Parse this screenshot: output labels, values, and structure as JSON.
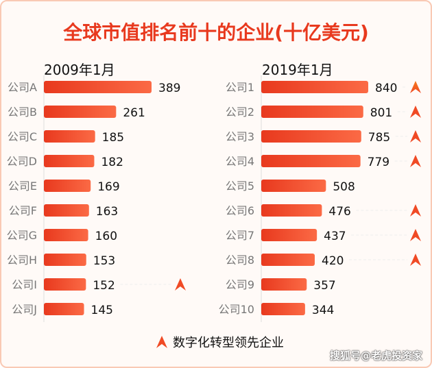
{
  "title": "全球市值排名前十的企业(十亿美元)",
  "legend": {
    "label": "数字化转型领先企业",
    "icon": "arrow-up-icon"
  },
  "watermark": "搜狐号@老虎投资家",
  "colors": {
    "title": "#e8391e",
    "bar_start": "#e8391e",
    "bar_end": "#fb6a45",
    "marker": "#f04a25",
    "marker_top": "#f57a1c"
  },
  "chart_data": [
    {
      "type": "bar",
      "orientation": "horizontal",
      "title": "2009年1月",
      "categories": [
        "公司A",
        "公司B",
        "公司C",
        "公司D",
        "公司E",
        "公司F",
        "公司G",
        "公司H",
        "公司I",
        "公司J"
      ],
      "values": [
        389,
        261,
        185,
        182,
        169,
        163,
        160,
        153,
        152,
        145
      ],
      "digital_leader": [
        false,
        false,
        false,
        false,
        false,
        false,
        false,
        false,
        true,
        false
      ]
    },
    {
      "type": "bar",
      "orientation": "horizontal",
      "title": "2019年1月",
      "categories": [
        "公司1",
        "公司2",
        "公司3",
        "公司4",
        "公司5",
        "公司6",
        "公司7",
        "公司8",
        "公司9",
        "公司10"
      ],
      "values": [
        840,
        801,
        785,
        779,
        508,
        476,
        437,
        420,
        357,
        344
      ],
      "digital_leader": [
        true,
        true,
        true,
        true,
        false,
        true,
        true,
        true,
        false,
        false
      ]
    }
  ]
}
